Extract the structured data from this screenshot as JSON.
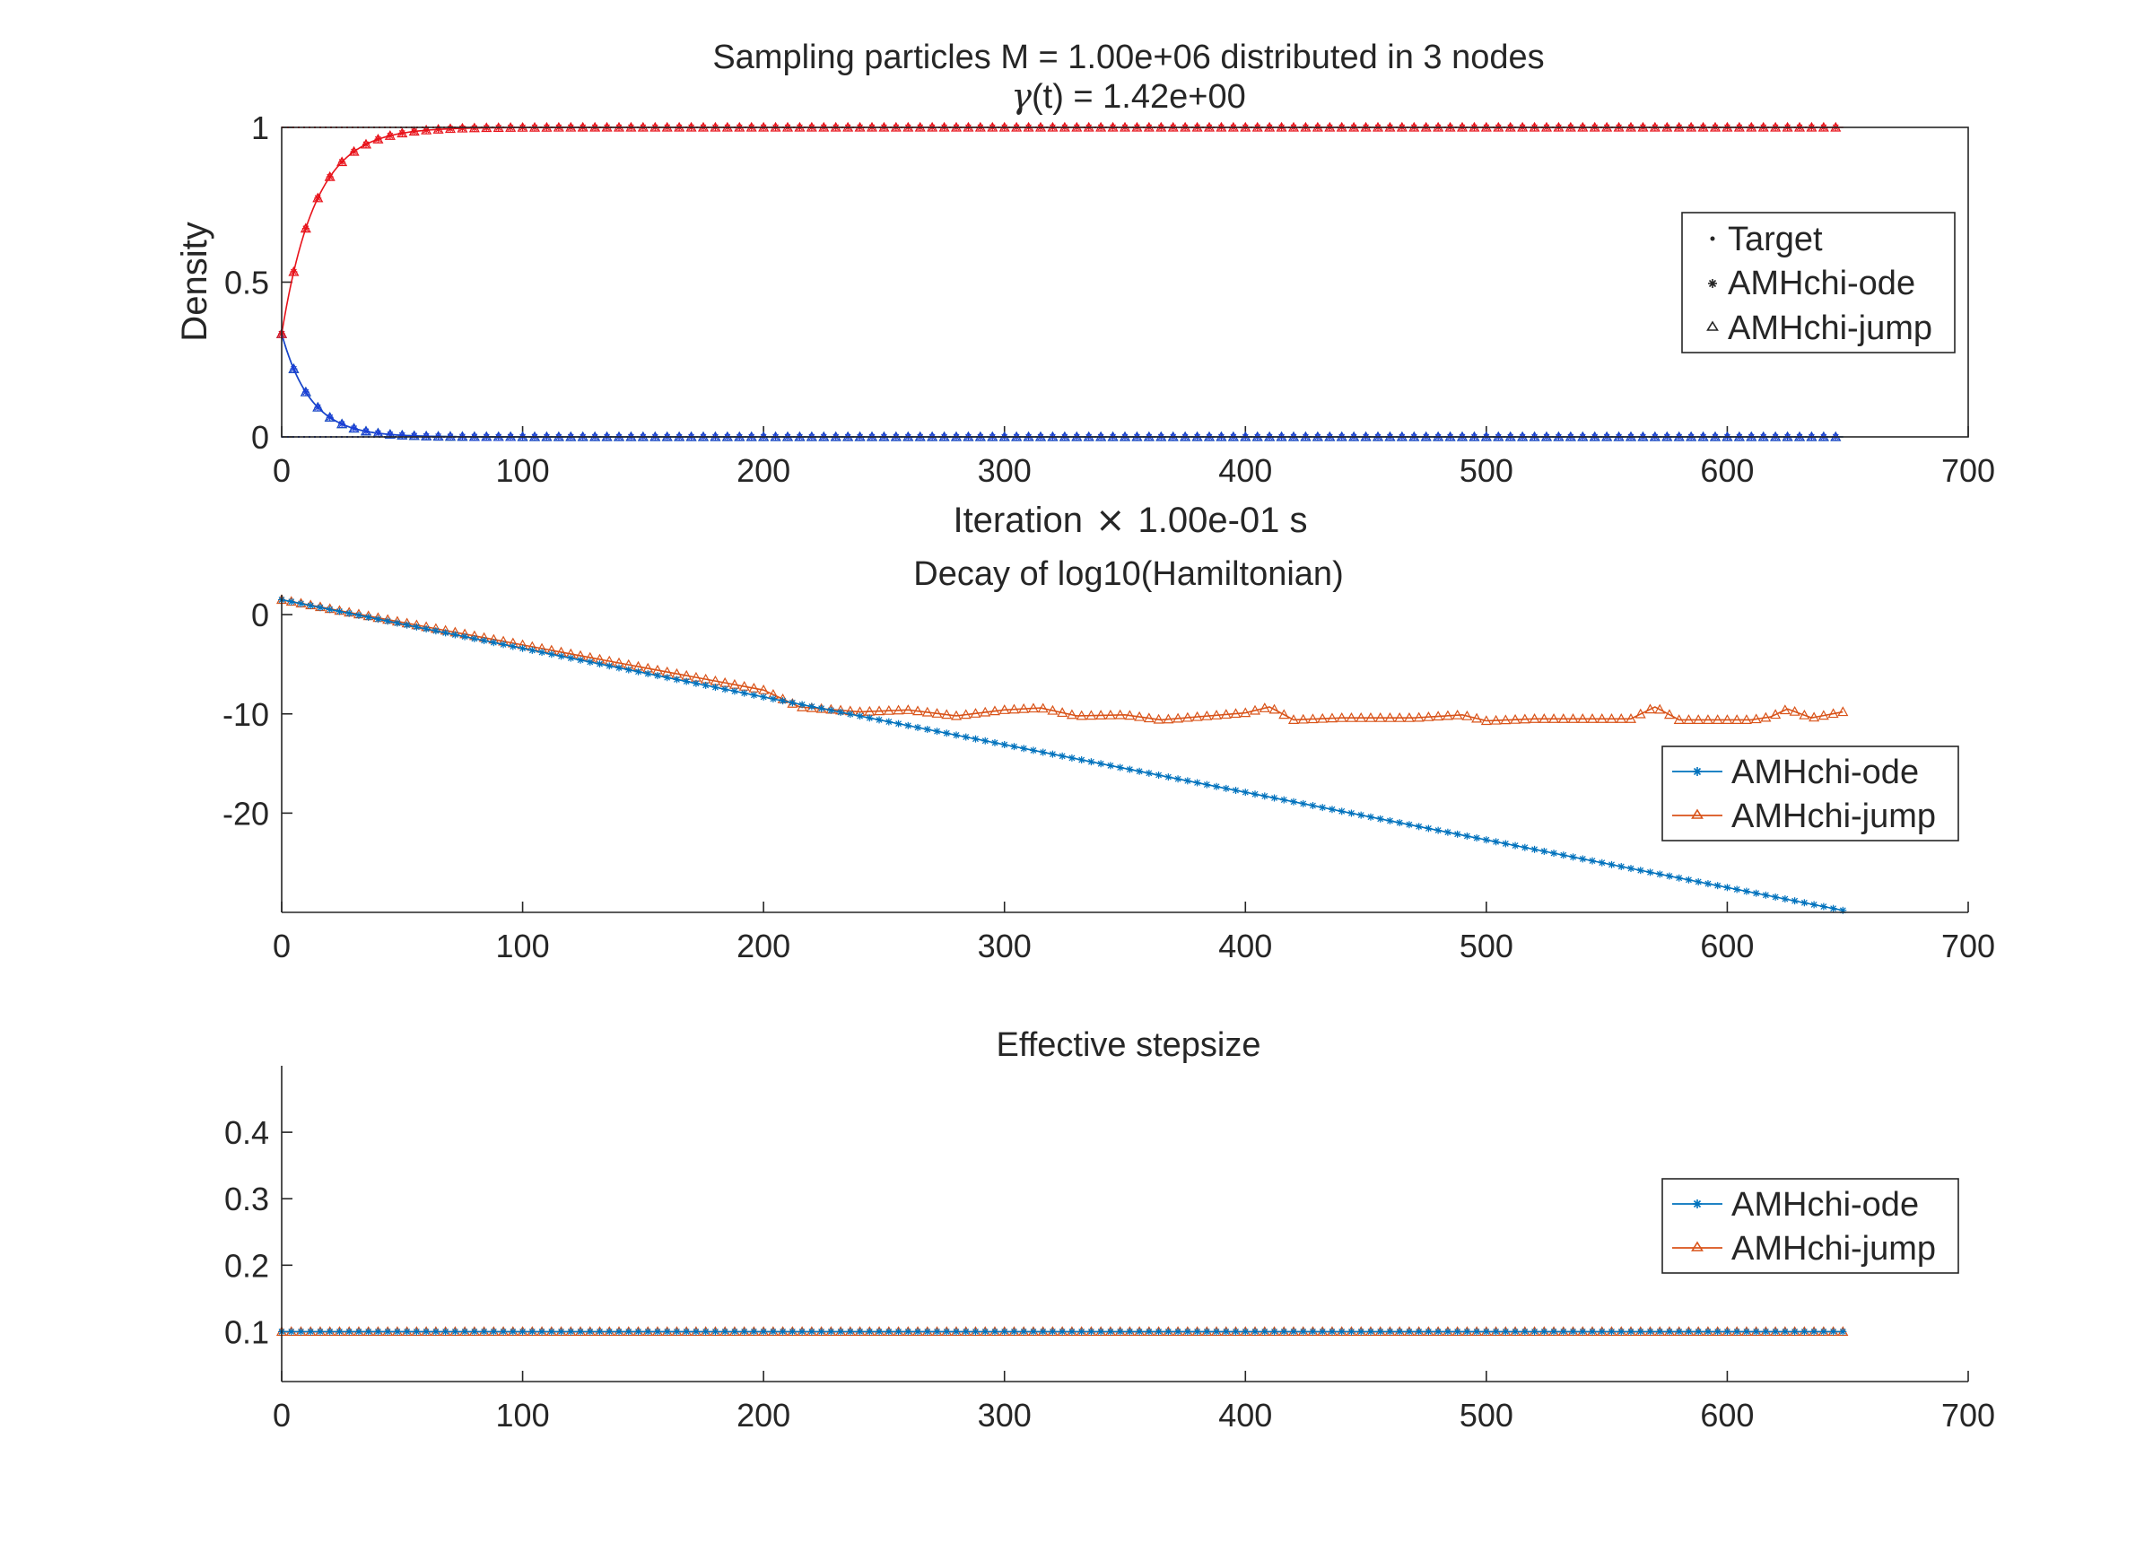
{
  "chart_data": [
    {
      "type": "line",
      "title": "Sampling particles M = 1.00e+06 distributed in 3 nodes",
      "subtitle_symbol": "γ",
      "subtitle_rest": "(t) = 1.42e+00",
      "xlabel_prefix": "Iteration",
      "xlabel_symbol": "×",
      "xlabel_suffix": "1.00e-01 s",
      "ylabel": "Density",
      "xlim": [
        0,
        700
      ],
      "ylim": [
        0,
        1
      ],
      "xticks": [
        "0",
        "100",
        "200",
        "300",
        "400",
        "500",
        "600",
        "700"
      ],
      "yticks": [
        "0",
        "0.5",
        "1"
      ],
      "legend_position": "top-right",
      "legend": [
        {
          "label": "Target",
          "marker": "point"
        },
        {
          "label": "AMHchi-ode",
          "marker": "asterisk"
        },
        {
          "label": "AMHchi-jump",
          "marker": "triangle"
        }
      ],
      "x_range": [
        0,
        648
      ],
      "marker_step": 5,
      "series": [
        {
          "color": "#e8121a",
          "start": 0.333,
          "end": 1.0,
          "time_constant": 14
        },
        {
          "color": "#1a3fd6",
          "start": 0.333,
          "end": 0.0,
          "time_constant": 12
        },
        {
          "color": "#1fa02f",
          "start": 0.333,
          "end": 0.0,
          "time_constant": 12
        }
      ],
      "target_values": [
        1.0,
        0.0,
        0.0
      ]
    },
    {
      "type": "line",
      "title": "Decay of log10(Hamiltonian)",
      "xlim": [
        0,
        700
      ],
      "ylim": [
        -30,
        2
      ],
      "xticks": [
        "0",
        "100",
        "200",
        "300",
        "400",
        "500",
        "600",
        "700"
      ],
      "yticks": [
        "0",
        "-10",
        "-20"
      ],
      "legend_position": "right",
      "legend": [
        {
          "label": "AMHchi-ode",
          "color": "#0072bd",
          "marker": "asterisk"
        },
        {
          "label": "AMHchi-jump",
          "color": "#d95319",
          "marker": "triangle"
        }
      ],
      "series": [
        {
          "name": "AMHchi-ode",
          "color": "#0072bd",
          "marker_step": 4,
          "points": [
            [
              0,
              1.5
            ],
            [
              200,
              -8.3
            ],
            [
              648,
              -29.8
            ]
          ]
        },
        {
          "name": "AMHchi-jump",
          "color": "#d95319",
          "marker_step": 4,
          "points": [
            [
              0,
              1.5
            ],
            [
              200,
              -7.6
            ],
            [
              215,
              -9.3
            ],
            [
              240,
              -9.8
            ],
            [
              260,
              -9.6
            ],
            [
              280,
              -10.2
            ],
            [
              300,
              -9.6
            ],
            [
              315,
              -9.4
            ],
            [
              330,
              -10.2
            ],
            [
              350,
              -10.1
            ],
            [
              365,
              -10.6
            ],
            [
              380,
              -10.3
            ],
            [
              400,
              -9.9
            ],
            [
              410,
              -9.3
            ],
            [
              420,
              -10.6
            ],
            [
              440,
              -10.4
            ],
            [
              470,
              -10.4
            ],
            [
              490,
              -10.1
            ],
            [
              500,
              -10.7
            ],
            [
              520,
              -10.5
            ],
            [
              560,
              -10.5
            ],
            [
              570,
              -9.3
            ],
            [
              580,
              -10.6
            ],
            [
              610,
              -10.6
            ],
            [
              618,
              -10.3
            ],
            [
              625,
              -9.5
            ],
            [
              635,
              -10.4
            ],
            [
              648,
              -9.8
            ]
          ]
        }
      ]
    },
    {
      "type": "line",
      "title": "Effective stepsize",
      "xlim": [
        0,
        700
      ],
      "ylim": [
        0.025,
        0.5
      ],
      "xticks": [
        "0",
        "100",
        "200",
        "300",
        "400",
        "500",
        "600",
        "700"
      ],
      "yticks": [
        "0.1",
        "0.2",
        "0.3",
        "0.4"
      ],
      "legend_position": "right",
      "legend": [
        {
          "label": "AMHchi-ode",
          "color": "#0072bd",
          "marker": "asterisk"
        },
        {
          "label": "AMHchi-jump",
          "color": "#d95319",
          "marker": "triangle"
        }
      ],
      "series": [
        {
          "name": "AMHchi-ode",
          "color": "#0072bd",
          "marker_step": 4,
          "points": [
            [
              0,
              0.1
            ],
            [
              648,
              0.1
            ]
          ]
        },
        {
          "name": "AMHchi-jump",
          "color": "#d95319",
          "marker_step": 4,
          "points": [
            [
              0,
              0.1
            ],
            [
              648,
              0.1
            ]
          ]
        }
      ]
    }
  ]
}
